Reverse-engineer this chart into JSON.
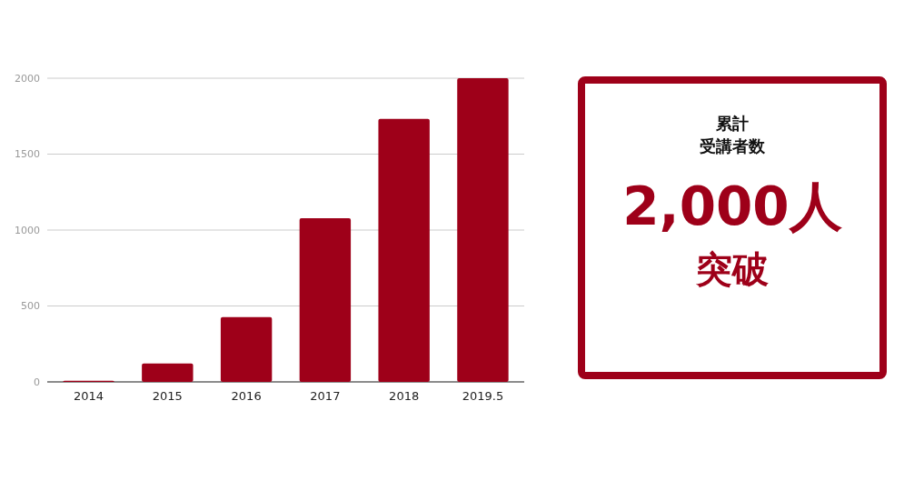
{
  "chart_data": {
    "type": "bar",
    "categories": [
      "2014",
      "2015",
      "2016",
      "2017",
      "2018",
      "2019.5"
    ],
    "values": [
      7,
      122,
      426,
      1078,
      1732,
      2000
    ],
    "color": "#9e0019",
    "ylim": [
      0,
      2000
    ],
    "yticks": [
      0,
      500,
      1000,
      1500,
      2000
    ],
    "grid": "y",
    "annotations": [
      "累計",
      "受講者数",
      "2,000人",
      "突破"
    ]
  }
}
